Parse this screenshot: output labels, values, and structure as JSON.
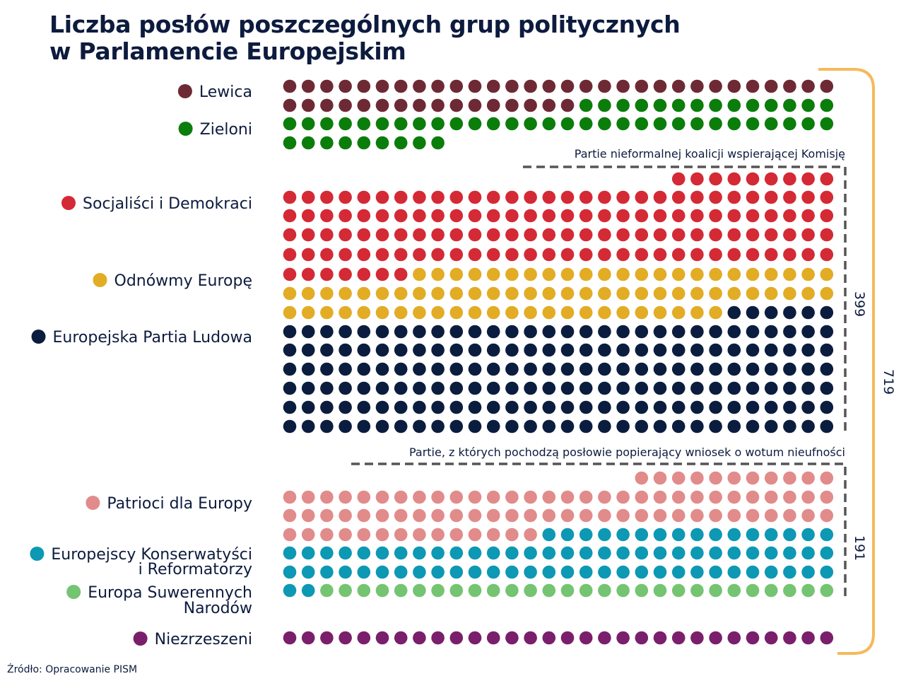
{
  "chart_data": {
    "type": "waffle",
    "title_line1": "Liczba posłów poszczególnych grup politycznych",
    "title_line2": "w Parlamencie Europejskim",
    "groups": [
      {
        "key": "lewica",
        "label": [
          "Lewica"
        ],
        "seats": 46,
        "color": "#6e2a34"
      },
      {
        "key": "zieloni",
        "label": [
          "Zieloni"
        ],
        "seats": 53,
        "color": "#0b7d0b"
      },
      {
        "key": "sd",
        "label": [
          "Socjaliści i Demokraci"
        ],
        "seats": 136,
        "color": "#d42a35"
      },
      {
        "key": "renew",
        "label": [
          "Odnówmy Europę"
        ],
        "seats": 77,
        "color": "#e2ac25"
      },
      {
        "key": "epp",
        "label": [
          "Europejska Partia Ludowa"
        ],
        "seats": 186,
        "color": "#0b1d3f"
      },
      {
        "key": "pfe",
        "label": [
          "Patrioci dla Europy"
        ],
        "seats": 85,
        "color": "#e28b8b"
      },
      {
        "key": "ecr",
        "label": [
          "Europejscy Konserwatyści",
          "i Reformatorzy"
        ],
        "seats": 78,
        "color": "#0d98b4"
      },
      {
        "key": "esn",
        "label": [
          "Europa Suwerennych",
          "Narodów"
        ],
        "seats": 28,
        "color": "#74c472"
      },
      {
        "key": "ni",
        "label": [
          "Niezrzeszeni"
        ],
        "seats": 30,
        "color": "#7a1f6b"
      }
    ],
    "coalition_support": {
      "label": "Partie nieformalnej koalicji wspierającej Komisję",
      "total": 399,
      "total_label": "399"
    },
    "no_confidence": {
      "label": "Partie, z których pochodzą posłowie popierający wniosek o wotum nieufności",
      "total": 191,
      "total_label": "191"
    },
    "grand_total": 719,
    "grand_total_label": "719",
    "bracket_color": "#f6b95a",
    "dashed_color": "#555555",
    "source": "Źródło: Opracowanie PISM"
  }
}
